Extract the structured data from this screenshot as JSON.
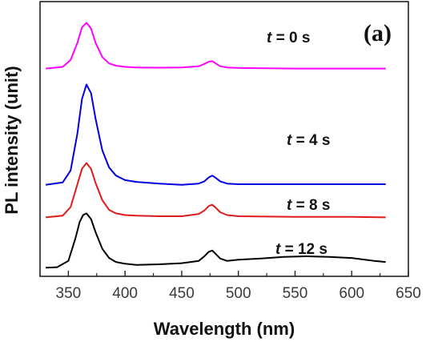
{
  "chart_data": {
    "type": "line",
    "title": "",
    "panel_label": "(a)",
    "xlabel": "Wavelength (nm)",
    "ylabel": "PL intensity (unit)",
    "xlim": [
      325,
      650
    ],
    "ylim": [
      0,
      4.8
    ],
    "xticks": [
      350,
      400,
      450,
      500,
      550,
      600,
      650
    ],
    "yticks_shown": false,
    "grid": false,
    "legend": "none",
    "series": [
      {
        "name": "t = 0 s",
        "label_t": "t",
        "label_rest": " = 0 s",
        "color": "#ff00ff",
        "offset": 3.63,
        "x": [
          330,
          345,
          352,
          358,
          362,
          366,
          370,
          374,
          380,
          386,
          392,
          400,
          410,
          430,
          450,
          465,
          470,
          474,
          477,
          480,
          484,
          490,
          500,
          550,
          600,
          630
        ],
        "y": [
          0.0,
          0.03,
          0.15,
          0.45,
          0.72,
          0.8,
          0.7,
          0.45,
          0.2,
          0.09,
          0.05,
          0.03,
          0.02,
          0.015,
          0.02,
          0.04,
          0.08,
          0.12,
          0.13,
          0.09,
          0.04,
          0.02,
          0.01,
          0.0,
          0.0,
          0.0
        ]
      },
      {
        "name": "t = 4 s",
        "label_t": "t",
        "label_rest": " = 4 s",
        "color": "#0000e0",
        "offset": 1.6,
        "x": [
          330,
          345,
          352,
          358,
          362,
          366,
          370,
          374,
          380,
          386,
          392,
          400,
          410,
          430,
          450,
          465,
          470,
          474,
          477,
          480,
          484,
          490,
          500,
          550,
          600,
          630
        ],
        "y": [
          0.0,
          0.04,
          0.25,
          0.9,
          1.5,
          1.75,
          1.6,
          1.15,
          0.6,
          0.3,
          0.16,
          0.08,
          0.05,
          0.02,
          0.0,
          0.02,
          0.06,
          0.13,
          0.16,
          0.12,
          0.06,
          0.02,
          0.01,
          0.01,
          0.01,
          0.01
        ]
      },
      {
        "name": "t = 8 s",
        "label_t": "t",
        "label_rest": " = 8 s",
        "color": "#e01a1a",
        "offset": 1.03,
        "x": [
          330,
          345,
          352,
          358,
          362,
          366,
          370,
          374,
          380,
          386,
          392,
          400,
          410,
          430,
          450,
          465,
          470,
          474,
          477,
          480,
          484,
          490,
          500,
          550,
          600,
          630
        ],
        "y": [
          0.0,
          0.03,
          0.18,
          0.58,
          0.85,
          0.95,
          0.85,
          0.6,
          0.3,
          0.13,
          0.07,
          0.04,
          0.03,
          0.02,
          0.02,
          0.06,
          0.12,
          0.2,
          0.22,
          0.17,
          0.09,
          0.04,
          0.02,
          0.01,
          0.01,
          0.0
        ]
      },
      {
        "name": "t = 12 s",
        "label_t": "t",
        "label_rest": " = 12 s",
        "color": "#000000",
        "offset": 0.15,
        "x": [
          330,
          340,
          350,
          356,
          360,
          363,
          366,
          370,
          374,
          380,
          386,
          392,
          400,
          410,
          430,
          450,
          465,
          470,
          474,
          477,
          480,
          484,
          490,
          500,
          520,
          540,
          560,
          580,
          600,
          620,
          630
        ],
        "y": [
          0.0,
          0.01,
          0.12,
          0.5,
          0.8,
          0.92,
          0.95,
          0.85,
          0.62,
          0.33,
          0.17,
          0.1,
          0.07,
          0.05,
          0.06,
          0.08,
          0.12,
          0.2,
          0.28,
          0.3,
          0.24,
          0.16,
          0.12,
          0.14,
          0.16,
          0.19,
          0.2,
          0.19,
          0.17,
          0.12,
          0.1
        ]
      }
    ]
  }
}
